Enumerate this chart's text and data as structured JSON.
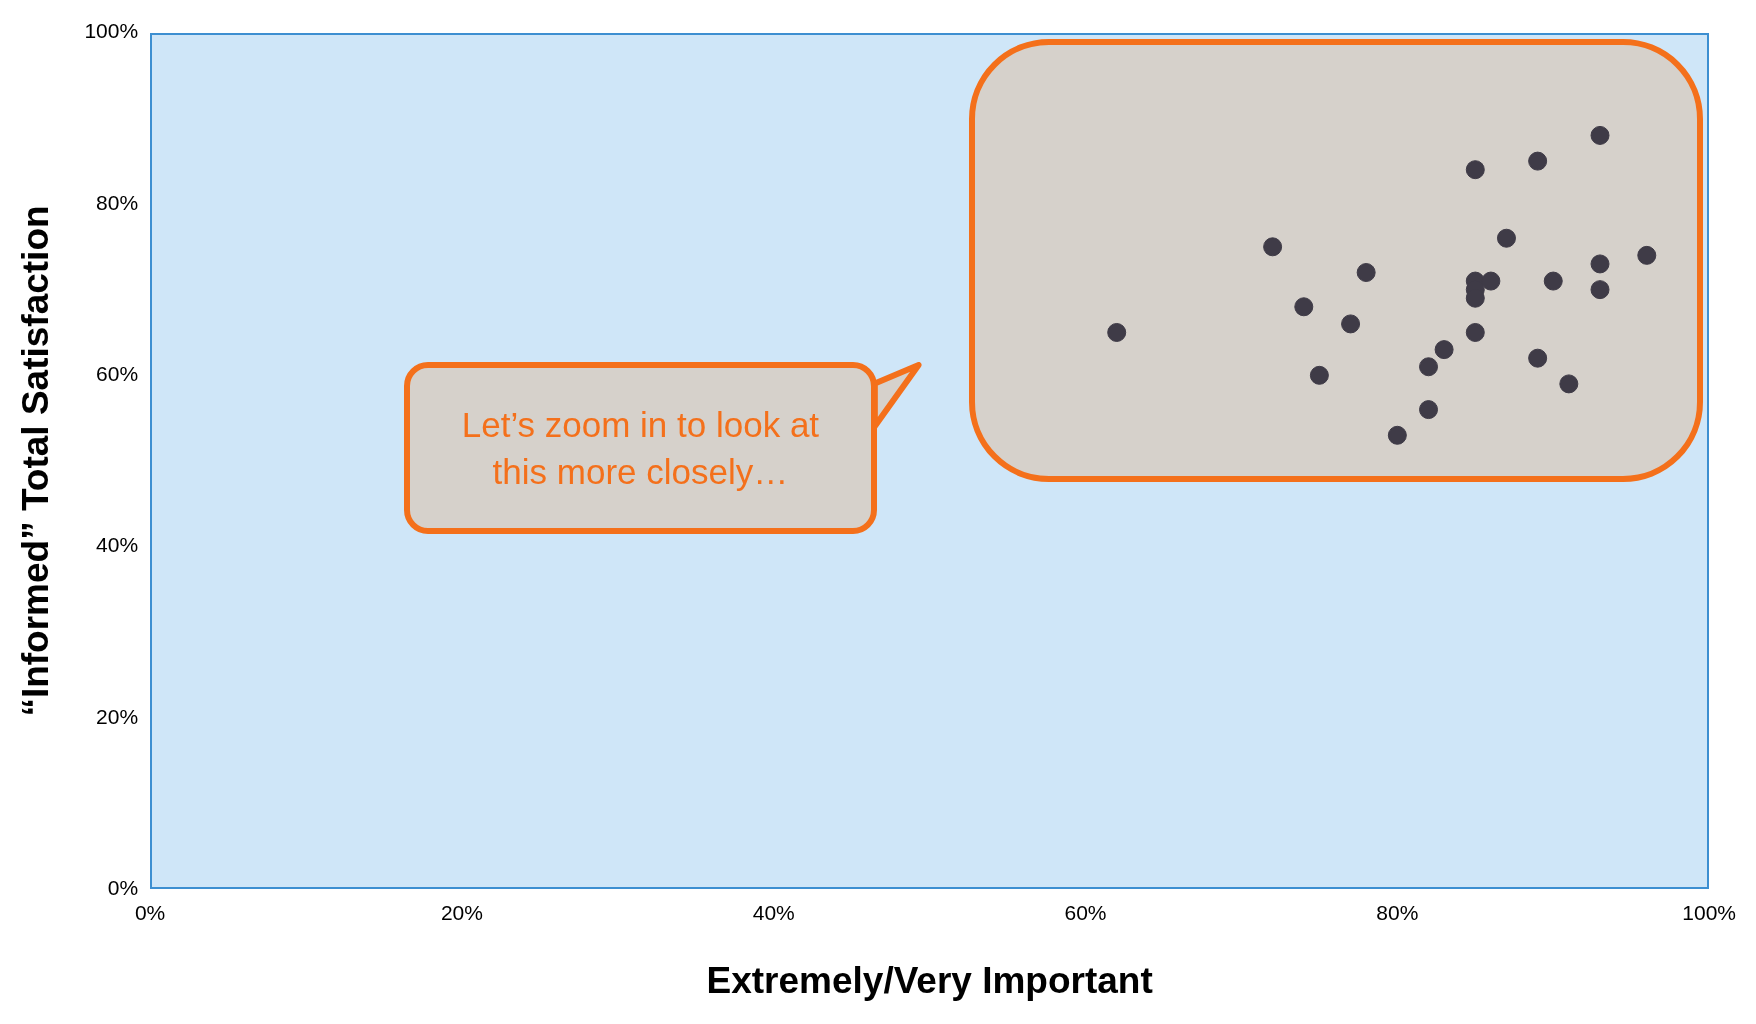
{
  "chart_data": {
    "type": "scatter",
    "xlabel": "Extremely/Very Important",
    "ylabel": "“Informed” Total Satisfaction",
    "x": [
      62,
      72,
      74,
      75,
      77,
      78,
      80,
      82,
      82,
      83,
      85,
      85,
      85,
      85,
      85,
      86,
      87,
      89,
      89,
      90,
      91,
      93,
      93,
      93,
      96
    ],
    "values": [
      65,
      75,
      68,
      60,
      66,
      72,
      53,
      61,
      56,
      63,
      84,
      71,
      70,
      69,
      65,
      71,
      76,
      85,
      62,
      71,
      59,
      88,
      73,
      70,
      74
    ],
    "color": "#3f3b47",
    "marker": "circle",
    "legend": false,
    "grid": false,
    "xlim": [
      0,
      100
    ],
    "xticks": [
      {
        "value": 0,
        "label": "0%"
      },
      {
        "value": 20,
        "label": "20%"
      },
      {
        "value": 40,
        "label": "40%"
      },
      {
        "value": 60,
        "label": "60%"
      },
      {
        "value": 80,
        "label": "80%"
      },
      {
        "value": 100,
        "label": "100%"
      }
    ],
    "ylim": [
      0,
      100
    ],
    "yticks": [
      {
        "value": 0,
        "label": "0%"
      },
      {
        "value": 20,
        "label": "20%"
      },
      {
        "value": 40,
        "label": "40%"
      },
      {
        "value": 60,
        "label": "60%"
      },
      {
        "value": 80,
        "label": "80%"
      },
      {
        "value": 100,
        "label": "100%"
      }
    ],
    "annotations": [
      "Let’s zoom in to look at this more closely…"
    ]
  }
}
